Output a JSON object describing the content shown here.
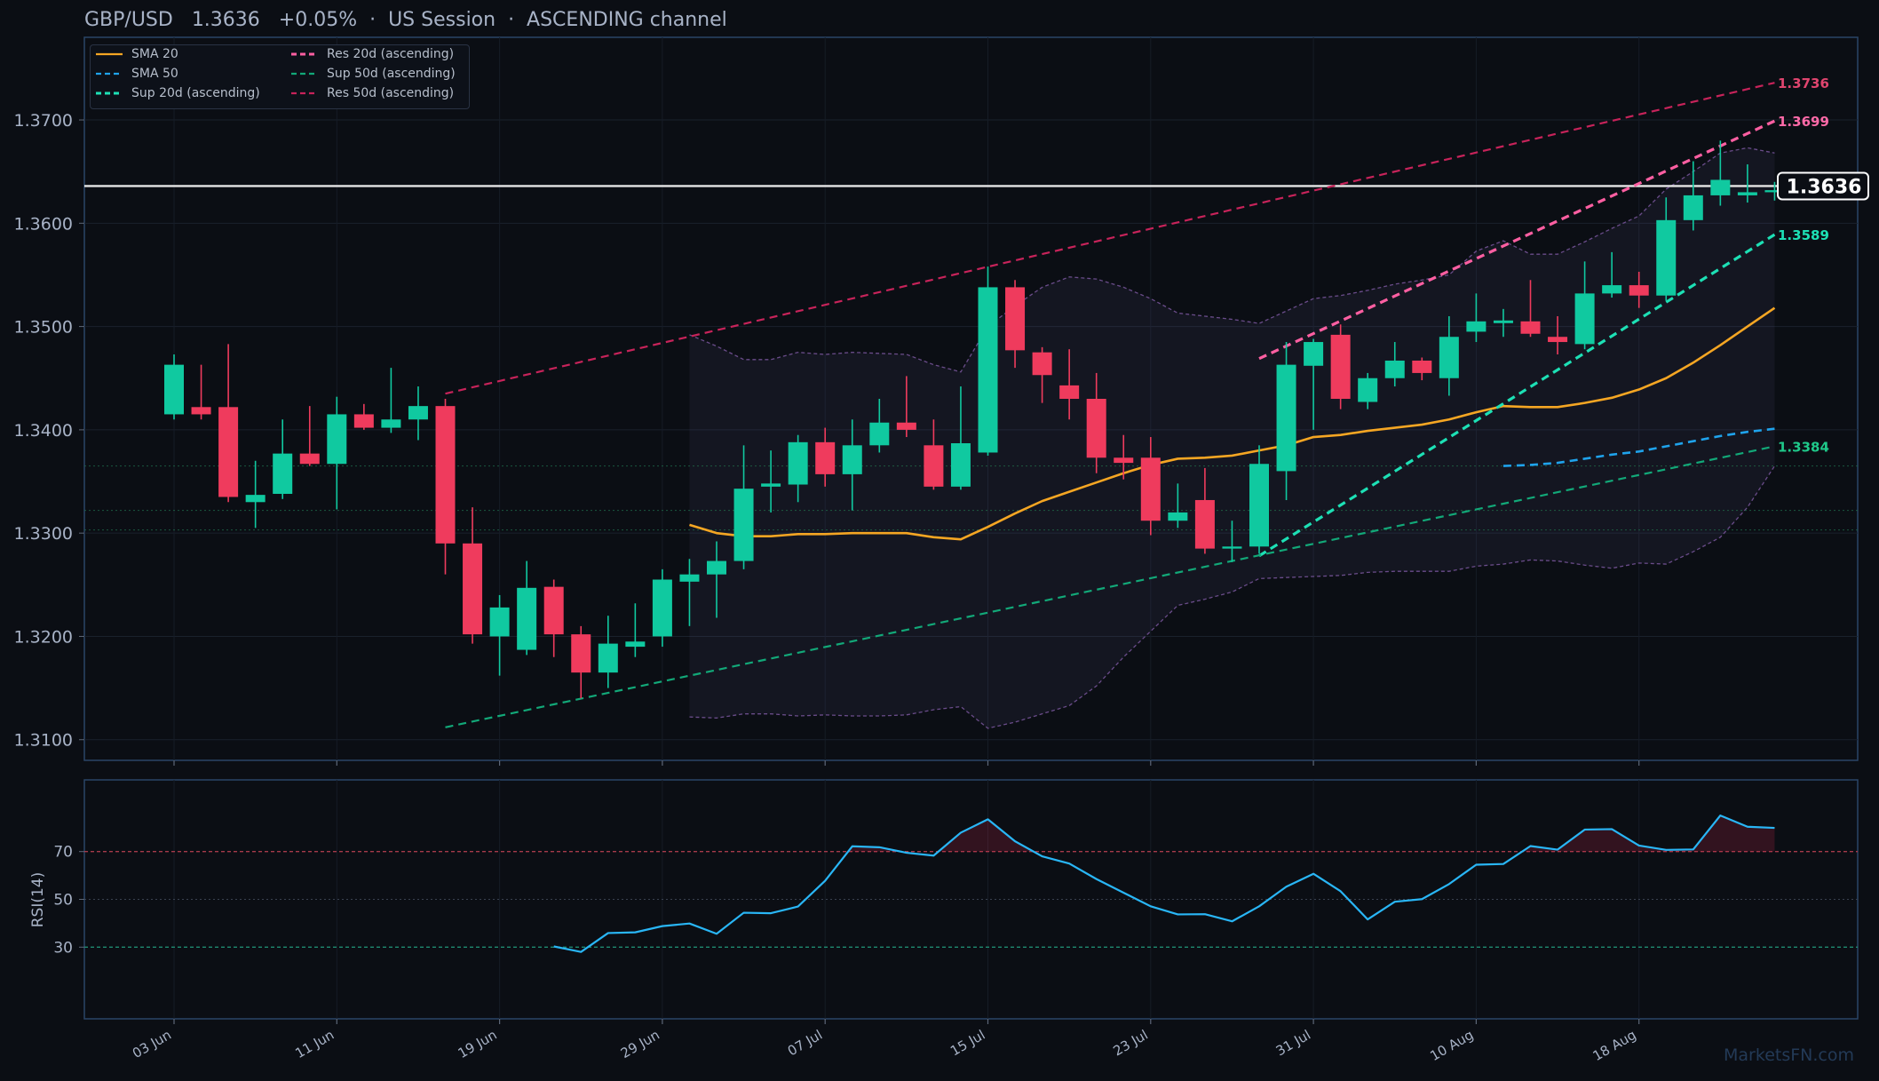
{
  "header": {
    "pair": "GBP/USD",
    "price": "1.3636",
    "change": "+0.05%",
    "session": "US Session",
    "channel": "ASCENDING channel"
  },
  "watermark": "MarketsFN.com",
  "colors": {
    "bull": "#10c9a0",
    "bear": "#ef3b5d",
    "sma20": "#f5a623",
    "sma50": "#1fa3ec",
    "res20": "#ff5fa2",
    "sup20": "#1de0b5",
    "res50": "#c7235a",
    "sup50": "#12a878",
    "rsi": "#29b6f6",
    "price_line": "#e6e6e6"
  },
  "chart_data": [
    {
      "type": "candlestick",
      "title": "GBP/USD 1.3636 +0.05% · US Session · ASCENDING channel",
      "ylim": [
        1.308,
        1.378
      ],
      "yticks": [
        "1.3100",
        "1.3200",
        "1.3300",
        "1.3400",
        "1.3500",
        "1.3600",
        "1.3700"
      ],
      "xticks": [
        {
          "i": 0,
          "label": "03 Jun"
        },
        {
          "i": 6,
          "label": "11 Jun"
        },
        {
          "i": 12,
          "label": "19 Jun"
        },
        {
          "i": 18,
          "label": "29 Jun"
        },
        {
          "i": 24,
          "label": "07 Jul"
        },
        {
          "i": 30,
          "label": "15 Jul"
        },
        {
          "i": 36,
          "label": "23 Jul"
        },
        {
          "i": 42,
          "label": "31 Jul"
        },
        {
          "i": 48,
          "label": "10 Aug"
        },
        {
          "i": 54,
          "label": "18 Aug"
        }
      ],
      "candles": [
        [
          1.3415,
          1.3473,
          1.341,
          1.3463
        ],
        [
          1.3422,
          1.3463,
          1.341,
          1.3415
        ],
        [
          1.3422,
          1.3483,
          1.333,
          1.3335
        ],
        [
          1.333,
          1.337,
          1.3305,
          1.3337
        ],
        [
          1.3338,
          1.341,
          1.3333,
          1.3377
        ],
        [
          1.3377,
          1.3423,
          1.3365,
          1.3367
        ],
        [
          1.3367,
          1.3432,
          1.3323,
          1.3415
        ],
        [
          1.3415,
          1.3425,
          1.34,
          1.3402
        ],
        [
          1.3402,
          1.346,
          1.3397,
          1.341
        ],
        [
          1.341,
          1.3442,
          1.339,
          1.3423
        ],
        [
          1.3423,
          1.343,
          1.326,
          1.329
        ],
        [
          1.329,
          1.3325,
          1.3193,
          1.3202
        ],
        [
          1.32,
          1.324,
          1.3162,
          1.3228
        ],
        [
          1.3187,
          1.3273,
          1.3182,
          1.3247
        ],
        [
          1.3248,
          1.3255,
          1.318,
          1.3202
        ],
        [
          1.3202,
          1.321,
          1.314,
          1.3165
        ],
        [
          1.3165,
          1.322,
          1.315,
          1.3193
        ],
        [
          1.319,
          1.3232,
          1.318,
          1.3195
        ],
        [
          1.32,
          1.3265,
          1.319,
          1.3255
        ],
        [
          1.3253,
          1.3275,
          1.321,
          1.326
        ],
        [
          1.326,
          1.3292,
          1.3218,
          1.3273
        ],
        [
          1.3273,
          1.3385,
          1.3265,
          1.3343
        ],
        [
          1.3345,
          1.338,
          1.332,
          1.3348
        ],
        [
          1.3347,
          1.3395,
          1.333,
          1.3388
        ],
        [
          1.3388,
          1.3402,
          1.3345,
          1.3357
        ],
        [
          1.3357,
          1.341,
          1.3322,
          1.3385
        ],
        [
          1.3385,
          1.343,
          1.3378,
          1.3407
        ],
        [
          1.3407,
          1.3452,
          1.3393,
          1.34
        ],
        [
          1.3385,
          1.341,
          1.3342,
          1.3345
        ],
        [
          1.3345,
          1.3442,
          1.3342,
          1.3387
        ],
        [
          1.3378,
          1.3558,
          1.3375,
          1.3538
        ],
        [
          1.3538,
          1.3545,
          1.346,
          1.3477
        ],
        [
          1.3475,
          1.348,
          1.3426,
          1.3453
        ],
        [
          1.3443,
          1.3478,
          1.341,
          1.343
        ],
        [
          1.343,
          1.3455,
          1.3358,
          1.3373
        ],
        [
          1.3373,
          1.3395,
          1.3352,
          1.3368
        ],
        [
          1.3373,
          1.3393,
          1.3298,
          1.3312
        ],
        [
          1.3312,
          1.3348,
          1.3305,
          1.332
        ],
        [
          1.3332,
          1.3363,
          1.328,
          1.3285
        ],
        [
          1.3285,
          1.3312,
          1.3272,
          1.3287
        ],
        [
          1.3287,
          1.3385,
          1.328,
          1.3367
        ],
        [
          1.336,
          1.3485,
          1.3332,
          1.3463
        ],
        [
          1.3462,
          1.3488,
          1.34,
          1.3485
        ],
        [
          1.3492,
          1.3502,
          1.342,
          1.343
        ],
        [
          1.3427,
          1.3455,
          1.342,
          1.345
        ],
        [
          1.345,
          1.3485,
          1.3442,
          1.3467
        ],
        [
          1.3467,
          1.347,
          1.3448,
          1.3455
        ],
        [
          1.345,
          1.351,
          1.3433,
          1.349
        ],
        [
          1.3495,
          1.3532,
          1.3485,
          1.3505
        ],
        [
          1.3505,
          1.3517,
          1.349,
          1.3505
        ],
        [
          1.3505,
          1.3545,
          1.349,
          1.3493
        ],
        [
          1.349,
          1.351,
          1.3473,
          1.3485
        ],
        [
          1.3483,
          1.3563,
          1.3478,
          1.3532
        ],
        [
          1.3532,
          1.3572,
          1.3528,
          1.354
        ],
        [
          1.354,
          1.3553,
          1.3518,
          1.353
        ],
        [
          1.353,
          1.3625,
          1.3525,
          1.3603
        ],
        [
          1.3603,
          1.366,
          1.3593,
          1.3627
        ],
        [
          1.3627,
          1.368,
          1.3617,
          1.3642
        ],
        [
          1.3627,
          1.3657,
          1.362,
          1.363
        ],
        [
          1.363,
          1.364,
          1.3622,
          1.3632
        ]
      ],
      "series": [
        {
          "name": "SMA 20",
          "style": "solid",
          "color": "#f5a623",
          "start": 19,
          "values": [
            1.3308,
            1.33,
            1.3297,
            1.3297,
            1.3299,
            1.3299,
            1.33,
            1.33,
            1.33,
            1.3296,
            1.3294,
            1.3306,
            1.3319,
            1.3331,
            1.334,
            1.3349,
            1.3358,
            1.3366,
            1.3372,
            1.3373,
            1.3375,
            1.338,
            1.3385,
            1.3393,
            1.3395,
            1.3399,
            1.3402,
            1.3405,
            1.341,
            1.3417,
            1.3423,
            1.3422,
            1.3422,
            1.3426,
            1.3431,
            1.3439,
            1.345,
            1.3465,
            1.3482,
            1.35,
            1.3518
          ]
        },
        {
          "name": "SMA 50",
          "style": "dashed",
          "color": "#1fa3ec",
          "start": 49,
          "values": [
            1.3365,
            1.3366,
            1.3368,
            1.3372,
            1.3376,
            1.3379,
            1.3384,
            1.3389,
            1.3394,
            1.3398,
            1.3401
          ]
        },
        {
          "name": "Sup 20d (ascending)",
          "style": "dashed",
          "color": "#1de0b5",
          "from": [
            40,
            1.3278
          ],
          "to": [
            59,
            1.3589
          ]
        },
        {
          "name": "Res 20d (ascending)",
          "style": "dashed",
          "color": "#ff5fa2",
          "from": [
            40,
            1.3469
          ],
          "to": [
            59,
            1.3699
          ]
        },
        {
          "name": "Sup 50d (ascending)",
          "style": "dashed",
          "color": "#12a878",
          "from": [
            10,
            1.3112
          ],
          "to": [
            59,
            1.3384
          ]
        },
        {
          "name": "Res 50d (ascending)",
          "style": "dashed",
          "color": "#c7235a",
          "from": [
            10,
            1.3435
          ],
          "to": [
            59,
            1.3736
          ]
        }
      ],
      "bollinger": {
        "start": 19,
        "upper": [
          1.3492,
          1.3481,
          1.3468,
          1.3468,
          1.3475,
          1.3473,
          1.3475,
          1.3474,
          1.3473,
          1.3463,
          1.3456,
          1.35,
          1.352,
          1.3538,
          1.3548,
          1.3546,
          1.3538,
          1.3527,
          1.3513,
          1.351,
          1.3507,
          1.3503,
          1.3515,
          1.3527,
          1.353,
          1.3535,
          1.3541,
          1.3545,
          1.355,
          1.3573,
          1.3583,
          1.357,
          1.357,
          1.3582,
          1.3595,
          1.3607,
          1.3633,
          1.365,
          1.3668,
          1.3673,
          1.3668
        ],
        "lower": [
          1.3122,
          1.3121,
          1.3125,
          1.3125,
          1.3123,
          1.3124,
          1.3123,
          1.3123,
          1.3124,
          1.3129,
          1.3132,
          1.3111,
          1.3117,
          1.3125,
          1.3133,
          1.3152,
          1.318,
          1.3205,
          1.323,
          1.3236,
          1.3243,
          1.3256,
          1.3257,
          1.3258,
          1.3259,
          1.3262,
          1.3263,
          1.3263,
          1.3263,
          1.3268,
          1.327,
          1.3274,
          1.3273,
          1.3269,
          1.3266,
          1.3271,
          1.327,
          1.3282,
          1.3296,
          1.3325,
          1.3365
        ]
      },
      "price_line": 1.3636,
      "price_label": "1.3636",
      "level_labels": [
        {
          "text": "1.3736",
          "y": 1.3736,
          "color": "#e0456f"
        },
        {
          "text": "1.3699",
          "y": 1.3699,
          "color": "#ff6aa8"
        },
        {
          "text": "1.3589",
          "y": 1.3589,
          "color": "#1de0b5"
        },
        {
          "text": "1.3384",
          "y": 1.3384,
          "color": "#1fc98a"
        }
      ],
      "hlines": [
        1.3365,
        1.3322,
        1.3303
      ],
      "legend": [
        {
          "name": "SMA 20",
          "style": "solid",
          "color": "#f5a623"
        },
        {
          "name": "SMA 50",
          "style": "dashed",
          "color": "#1fa3ec"
        },
        {
          "name": "Sup 20d (ascending)",
          "style": "dashed",
          "color": "#1de0b5"
        },
        {
          "name": "Res 20d (ascending)",
          "style": "dashed",
          "color": "#ff5fa2"
        },
        {
          "name": "Sup 50d (ascending)",
          "style": "dashed",
          "color": "#12a878"
        },
        {
          "name": "Res 50d (ascending)",
          "style": "dashed",
          "color": "#c7235a"
        }
      ],
      "legend_position": "top-left"
    },
    {
      "type": "line",
      "ylabel": "RSI(14)",
      "ylim": [
        0,
        100
      ],
      "yticks": [
        30,
        50,
        70
      ],
      "levels": {
        "overbought": 70,
        "mid": 50,
        "oversold": 30
      },
      "start": 14,
      "values": [
        30.3,
        28.0,
        35.9,
        36.2,
        38.8,
        39.9,
        35.6,
        44.4,
        44.2,
        47.0,
        57.8,
        72.2,
        71.8,
        69.5,
        68.3,
        77.9,
        83.5,
        74.3,
        68.0,
        65.0,
        58.5,
        52.8,
        47.1,
        43.7,
        43.8,
        40.8,
        47.1,
        55.3,
        60.7,
        53.4,
        41.6,
        49.0,
        50.1,
        56.4,
        64.5,
        64.8,
        72.3,
        70.8,
        79.2,
        79.4,
        72.5,
        70.7,
        70.9,
        85.1,
        80.4,
        79.9
      ]
    }
  ]
}
